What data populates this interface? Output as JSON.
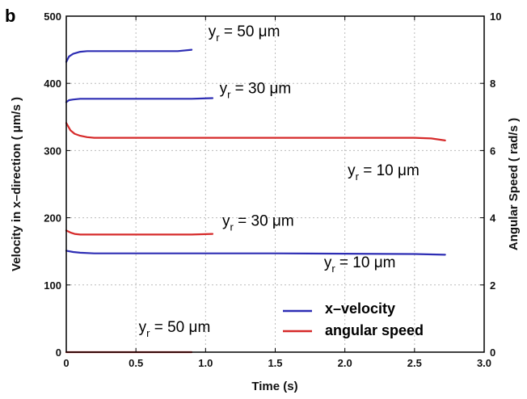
{
  "chart_data": {
    "type": "line",
    "panel_label": "b",
    "xlabel": "Time (s)",
    "ylabel": "Velocity in x–direction ( μm/s )",
    "ylabel2": "Angular Speed ( rad/s )",
    "xlim": [
      0,
      3.0
    ],
    "ylim": [
      0,
      500
    ],
    "ylim2": [
      0,
      10
    ],
    "xticks": [
      "0",
      "0.5",
      "1.0",
      "1.5",
      "2.0",
      "2.5",
      "3.0"
    ],
    "yticks": [
      "0",
      "100",
      "200",
      "300",
      "400",
      "500"
    ],
    "yticks2": [
      "0",
      "2",
      "4",
      "6",
      "8",
      "10"
    ],
    "grid": true,
    "legend_position": "bottom-right",
    "legend": [
      {
        "label": "x–velocity",
        "color": "#2d2db4"
      },
      {
        "label": "angular speed",
        "color": "#d62a2a"
      }
    ],
    "series": [
      {
        "group": "x-velocity",
        "color": "#2d2db4",
        "axis": "left",
        "x": [
          0,
          0.02,
          0.05,
          0.1,
          0.15,
          0.2,
          0.5,
          0.8,
          0.9
        ],
        "y": [
          432,
          440,
          444,
          447,
          448,
          448,
          448,
          448,
          450
        ]
      },
      {
        "group": "x-velocity",
        "color": "#2d2db4",
        "axis": "left",
        "x": [
          0,
          0.02,
          0.05,
          0.1,
          0.2,
          0.5,
          0.9,
          1.05
        ],
        "y": [
          372,
          375,
          376,
          377,
          377,
          377,
          377,
          378
        ]
      },
      {
        "group": "x-velocity",
        "color": "#2d2db4",
        "axis": "left",
        "x": [
          0,
          0.05,
          0.1,
          0.2,
          0.5,
          1.0,
          1.5,
          2.0,
          2.5,
          2.72
        ],
        "y": [
          151,
          149,
          148,
          147,
          147,
          147,
          147,
          146.5,
          146,
          145
        ]
      },
      {
        "group": "angular speed",
        "color": "#d62a2a",
        "axis": "right",
        "x": [
          0,
          0.03,
          0.06,
          0.1,
          0.15,
          0.2,
          0.3,
          0.5,
          0.9,
          1.05
        ],
        "y": [
          3.62,
          3.56,
          3.52,
          3.5,
          3.5,
          3.5,
          3.5,
          3.5,
          3.5,
          3.52
        ]
      },
      {
        "group": "angular speed",
        "color": "#d62a2a",
        "axis": "right",
        "x": [
          0,
          0.03,
          0.06,
          0.1,
          0.15,
          0.2,
          0.3,
          0.5,
          1.0,
          1.5,
          2.0,
          2.5,
          2.62,
          2.72
        ],
        "y": [
          6.82,
          6.6,
          6.5,
          6.44,
          6.4,
          6.38,
          6.38,
          6.38,
          6.38,
          6.38,
          6.38,
          6.38,
          6.36,
          6.3
        ]
      },
      {
        "group": "angular speed",
        "color": "#d62a2a",
        "axis": "right",
        "x": [
          0,
          0.5,
          0.9
        ],
        "y": [
          0,
          0,
          0
        ]
      }
    ],
    "annotations": [
      {
        "base": "y",
        "sub": "r",
        "rest": " = 50 μm",
        "x": 1.02,
        "y": 470
      },
      {
        "base": "y",
        "sub": "r",
        "rest": " = 30 μm",
        "x": 1.1,
        "y": 385
      },
      {
        "base": "y",
        "sub": "r",
        "rest": " = 10 μm",
        "x": 2.02,
        "y": 263
      },
      {
        "base": "y",
        "sub": "r",
        "rest": " = 30 μm",
        "x": 1.12,
        "y": 188
      },
      {
        "base": "y",
        "sub": "r",
        "rest": " = 10 μm",
        "x": 1.85,
        "y": 126
      },
      {
        "base": "y",
        "sub": "r",
        "rest": " = 50 μm",
        "x": 0.52,
        "y": 30
      }
    ]
  }
}
